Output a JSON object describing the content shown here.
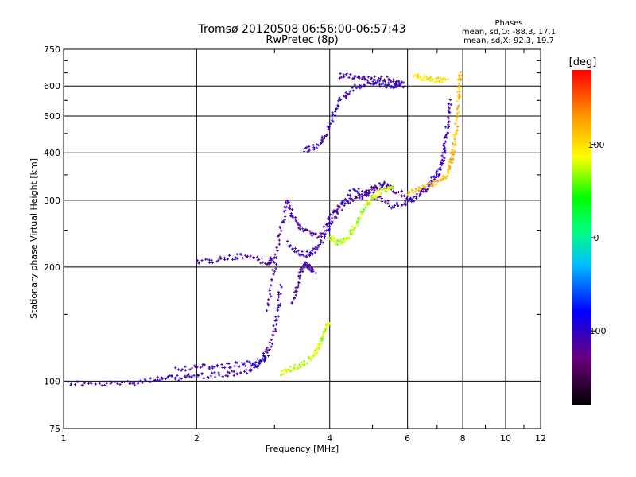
{
  "chart_data": {
    "type": "scatter",
    "title": "Tromsø 20120508 06:56:00-06:57:43",
    "subtitle": "RwPretec (8p)",
    "xlabel": "Frequency [MHz]",
    "ylabel": "Stationary phase Virtual Height [km]",
    "x_scale": "log",
    "y_scale": "log",
    "xlim": [
      1,
      12
    ],
    "ylim": [
      75,
      750
    ],
    "x_ticks": [
      1,
      2,
      4,
      6,
      8,
      10,
      12
    ],
    "y_ticks": [
      75,
      100,
      200,
      300,
      400,
      500,
      600,
      750
    ],
    "grid": true,
    "phases": {
      "heading": "Phases",
      "line1": "mean, sd,O: -88.3, 17.1",
      "line2": "mean, sd,X:  92.3, 19.7"
    },
    "colorbar": {
      "label": "[deg]",
      "range": [
        -180,
        180
      ],
      "ticks": [
        100,
        0,
        -100
      ],
      "colormap": "rainbow (black-purple-blue-cyan-green-yellow-red)"
    },
    "traces": [
      {
        "name": "",
        "color_deg": -110,
        "points": [
          [
            1.02,
            99
          ],
          [
            1.2,
            98
          ],
          [
            1.4,
            99
          ],
          [
            1.6,
            101
          ],
          [
            1.8,
            102
          ],
          [
            2.0,
            103
          ],
          [
            2.3,
            104
          ],
          [
            2.6,
            106
          ],
          [
            2.8,
            112
          ],
          [
            2.95,
            125
          ],
          [
            3.05,
            150
          ],
          [
            3.1,
            180
          ]
        ]
      },
      {
        "name": "",
        "color_deg": -105,
        "points": [
          [
            1.8,
            108
          ],
          [
            2.1,
            109
          ],
          [
            2.4,
            110
          ],
          [
            2.7,
            112
          ],
          [
            2.9,
            116
          ]
        ]
      },
      {
        "name": "",
        "color_deg": -110,
        "points": [
          [
            2.0,
            205
          ],
          [
            2.3,
            210
          ],
          [
            2.6,
            214
          ],
          [
            2.9,
            205
          ],
          [
            3.0,
            210
          ]
        ]
      },
      {
        "name": "",
        "color_deg": -115,
        "points": [
          [
            2.9,
            155
          ],
          [
            3.0,
            200
          ],
          [
            3.1,
            250
          ],
          [
            3.2,
            300
          ],
          [
            3.3,
            270
          ],
          [
            3.5,
            250
          ],
          [
            3.8,
            240
          ],
          [
            4.0,
            270
          ],
          [
            4.2,
            290
          ],
          [
            4.5,
            300
          ],
          [
            4.8,
            310
          ],
          [
            5.0,
            320
          ],
          [
            5.3,
            330
          ],
          [
            5.6,
            320
          ],
          [
            6.0,
            305
          ]
        ]
      },
      {
        "name": "",
        "color_deg": -105,
        "points": [
          [
            3.2,
            230
          ],
          [
            3.5,
            215
          ],
          [
            3.7,
            220
          ],
          [
            3.9,
            240
          ],
          [
            4.1,
            270
          ],
          [
            4.5,
            320
          ],
          [
            5.0,
            310
          ],
          [
            5.5,
            290
          ],
          [
            6.0,
            295
          ],
          [
            6.4,
            310
          ],
          [
            6.7,
            330
          ],
          [
            7.0,
            350
          ],
          [
            7.2,
            380
          ],
          [
            7.3,
            420
          ],
          [
            7.4,
            480
          ],
          [
            7.5,
            550
          ]
        ]
      },
      {
        "name": "",
        "color_deg": -115,
        "points": [
          [
            3.3,
            160
          ],
          [
            3.4,
            185
          ],
          [
            3.5,
            205
          ],
          [
            3.6,
            200
          ],
          [
            3.7,
            195
          ]
        ]
      },
      {
        "name": "",
        "color_deg": -105,
        "points": [
          [
            3.5,
            405
          ],
          [
            3.8,
            420
          ],
          [
            4.0,
            470
          ],
          [
            4.2,
            550
          ],
          [
            4.6,
            600
          ],
          [
            5.0,
            610
          ],
          [
            5.5,
            600
          ],
          [
            5.8,
            610
          ]
        ]
      },
      {
        "name": "",
        "color_deg": -110,
        "points": [
          [
            4.2,
            640
          ],
          [
            4.6,
            635
          ],
          [
            5.0,
            630
          ],
          [
            5.5,
            625
          ],
          [
            5.9,
            600
          ]
        ]
      },
      {
        "name": "",
        "color_deg": 80,
        "points": [
          [
            3.1,
            105
          ],
          [
            3.3,
            108
          ],
          [
            3.5,
            112
          ],
          [
            3.7,
            118
          ],
          [
            3.8,
            125
          ],
          [
            3.9,
            135
          ],
          [
            4.0,
            145
          ]
        ]
      },
      {
        "name": "",
        "color_deg": 75,
        "points": [
          [
            4.0,
            240
          ],
          [
            4.2,
            230
          ],
          [
            4.4,
            240
          ],
          [
            4.6,
            260
          ],
          [
            4.8,
            285
          ],
          [
            5.0,
            305
          ],
          [
            5.3,
            320
          ],
          [
            5.6,
            320
          ]
        ]
      },
      {
        "name": "",
        "color_deg": 115,
        "points": [
          [
            6.0,
            315
          ],
          [
            6.5,
            325
          ],
          [
            7.0,
            335
          ],
          [
            7.3,
            345
          ],
          [
            7.5,
            370
          ],
          [
            7.6,
            400
          ],
          [
            7.7,
            450
          ],
          [
            7.8,
            520
          ],
          [
            7.85,
            600
          ],
          [
            7.9,
            650
          ]
        ]
      },
      {
        "name": "",
        "color_deg": 95,
        "points": [
          [
            6.2,
            640
          ],
          [
            6.6,
            630
          ],
          [
            7.0,
            625
          ],
          [
            7.4,
            615
          ]
        ]
      }
    ]
  }
}
